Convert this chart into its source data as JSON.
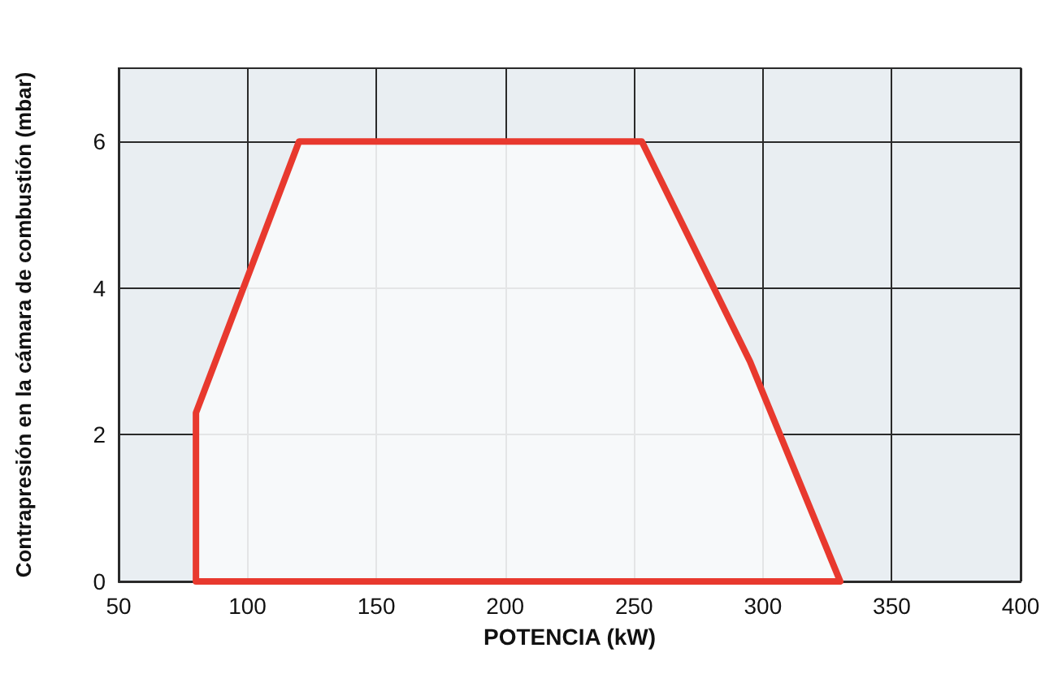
{
  "chart_data": {
    "type": "area",
    "xlabel": "POTENCIA (kW)",
    "ylabel": "Contrapresión en la cámara de combustión (mbar)",
    "series": [
      {
        "color": "#e8392e",
        "x": [
          80,
          80,
          120,
          253,
          295,
          330,
          80
        ],
        "values": [
          0,
          2.3,
          6,
          6,
          3,
          0,
          0
        ]
      }
    ],
    "xlim": [
      50,
      400
    ],
    "xticks": [
      50,
      100,
      150,
      200,
      250,
      300,
      350,
      400
    ],
    "ylim": [
      0,
      7
    ],
    "yticks": [
      0,
      2,
      4,
      6
    ],
    "grid": true,
    "marker": "none",
    "line_style": "solid"
  }
}
